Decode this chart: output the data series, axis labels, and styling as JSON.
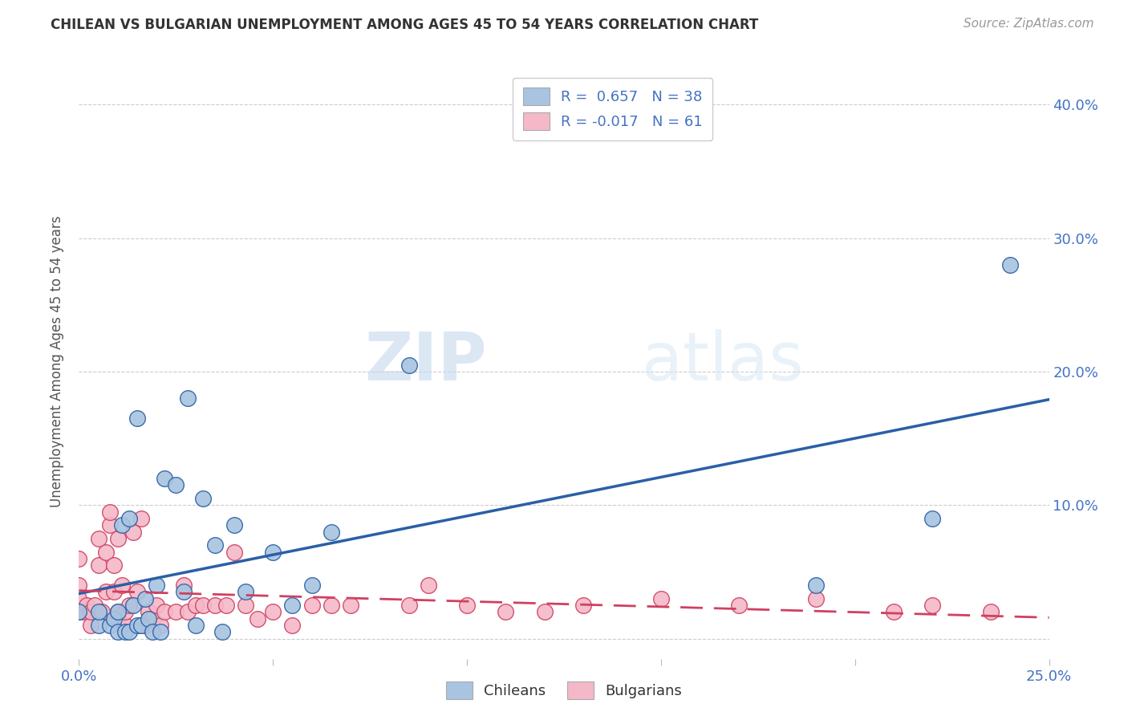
{
  "title": "CHILEAN VS BULGARIAN UNEMPLOYMENT AMONG AGES 45 TO 54 YEARS CORRELATION CHART",
  "source": "Source: ZipAtlas.com",
  "ylabel": "Unemployment Among Ages 45 to 54 years",
  "xlim": [
    0.0,
    0.25
  ],
  "ylim": [
    -0.015,
    0.43
  ],
  "xticks": [
    0.0,
    0.05,
    0.1,
    0.15,
    0.2,
    0.25
  ],
  "yticks": [
    0.0,
    0.1,
    0.2,
    0.3,
    0.4
  ],
  "ytick_labels": [
    "",
    "10.0%",
    "20.0%",
    "30.0%",
    "40.0%"
  ],
  "xtick_labels": [
    "0.0%",
    "",
    "",
    "",
    "",
    "25.0%"
  ],
  "chilean_R": 0.657,
  "chilean_N": 38,
  "bulgarian_R": -0.017,
  "bulgarian_N": 61,
  "chilean_color": "#a8c4e0",
  "bulgarian_color": "#f4b8c8",
  "chilean_line_color": "#2b5fa5",
  "bulgarian_line_color": "#d04060",
  "watermark_zip": "ZIP",
  "watermark_atlas": "atlas",
  "chilean_x": [
    0.0,
    0.005,
    0.005,
    0.008,
    0.009,
    0.01,
    0.01,
    0.011,
    0.012,
    0.013,
    0.013,
    0.014,
    0.015,
    0.015,
    0.016,
    0.017,
    0.018,
    0.019,
    0.02,
    0.021,
    0.022,
    0.025,
    0.027,
    0.028,
    0.03,
    0.032,
    0.035,
    0.037,
    0.04,
    0.043,
    0.05,
    0.055,
    0.06,
    0.065,
    0.085,
    0.19,
    0.22,
    0.24
  ],
  "chilean_y": [
    0.02,
    0.01,
    0.02,
    0.01,
    0.015,
    0.005,
    0.02,
    0.085,
    0.005,
    0.005,
    0.09,
    0.025,
    0.01,
    0.165,
    0.01,
    0.03,
    0.015,
    0.005,
    0.04,
    0.005,
    0.12,
    0.115,
    0.035,
    0.18,
    0.01,
    0.105,
    0.07,
    0.005,
    0.085,
    0.035,
    0.065,
    0.025,
    0.04,
    0.08,
    0.205,
    0.04,
    0.09,
    0.28
  ],
  "bulgarian_x": [
    0.0,
    0.0,
    0.0,
    0.0,
    0.001,
    0.002,
    0.003,
    0.003,
    0.004,
    0.005,
    0.005,
    0.006,
    0.007,
    0.007,
    0.008,
    0.008,
    0.009,
    0.009,
    0.01,
    0.01,
    0.01,
    0.011,
    0.012,
    0.012,
    0.013,
    0.014,
    0.015,
    0.016,
    0.017,
    0.018,
    0.019,
    0.02,
    0.021,
    0.022,
    0.025,
    0.027,
    0.028,
    0.03,
    0.032,
    0.035,
    0.038,
    0.04,
    0.043,
    0.046,
    0.05,
    0.055,
    0.06,
    0.065,
    0.07,
    0.085,
    0.09,
    0.1,
    0.11,
    0.12,
    0.13,
    0.15,
    0.17,
    0.19,
    0.21,
    0.22,
    0.235
  ],
  "bulgarian_y": [
    0.02,
    0.03,
    0.04,
    0.06,
    0.02,
    0.025,
    0.01,
    0.02,
    0.025,
    0.055,
    0.075,
    0.02,
    0.035,
    0.065,
    0.085,
    0.095,
    0.035,
    0.055,
    0.015,
    0.02,
    0.075,
    0.04,
    0.01,
    0.02,
    0.025,
    0.08,
    0.035,
    0.09,
    0.01,
    0.02,
    0.015,
    0.025,
    0.01,
    0.02,
    0.02,
    0.04,
    0.02,
    0.025,
    0.025,
    0.025,
    0.025,
    0.065,
    0.025,
    0.015,
    0.02,
    0.01,
    0.025,
    0.025,
    0.025,
    0.025,
    0.04,
    0.025,
    0.02,
    0.02,
    0.025,
    0.03,
    0.025,
    0.03,
    0.02,
    0.025,
    0.02
  ]
}
